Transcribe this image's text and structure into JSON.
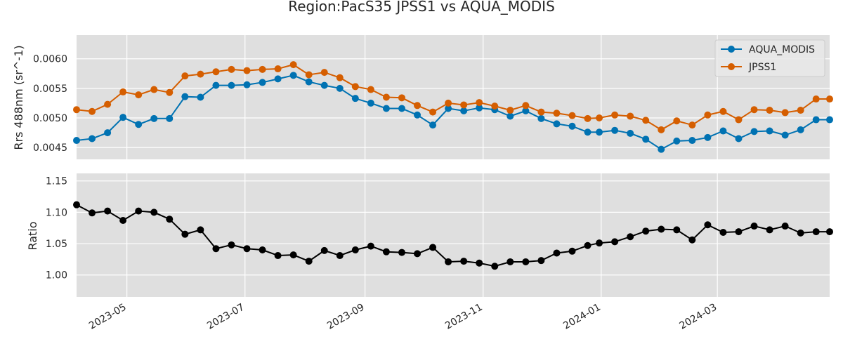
{
  "title": "Region:PacS35 JPSS1 vs AQUA_MODIS",
  "colors": {
    "aqua": "#0072B2",
    "jpss": "#D55E00",
    "ratio": "#000000",
    "panel_bg": "#DFDFDF",
    "grid": "#FFFFFF"
  },
  "chart_data": [
    {
      "type": "line",
      "xlabel": "",
      "ylabel": "Rrs 488nm (sr^-1)",
      "x_axis": {
        "type": "date",
        "range": [
          "2023-04-05",
          "2024-04-28"
        ],
        "ticks": [
          "2023-05-01",
          "2023-07-01",
          "2023-09-01",
          "2023-11-01",
          "2024-01-01",
          "2024-03-01"
        ],
        "tick_labels": [
          "2023-05",
          "2023-07",
          "2023-09",
          "2023-11",
          "2024-01",
          "2024-03"
        ]
      },
      "ylim": [
        0.0043,
        0.0064
      ],
      "yticks": [
        0.0045,
        0.005,
        0.0055,
        0.006
      ],
      "ytick_labels": [
        "0.0045",
        "0.0050",
        "0.0055",
        "0.0060"
      ],
      "grid": true,
      "legend": "top-right",
      "x": [
        "2023-04-05",
        "2023-04-13",
        "2023-04-21",
        "2023-04-29",
        "2023-05-07",
        "2023-05-15",
        "2023-05-23",
        "2023-05-31",
        "2023-06-08",
        "2023-06-16",
        "2023-06-24",
        "2023-07-02",
        "2023-07-10",
        "2023-07-18",
        "2023-07-26",
        "2023-08-03",
        "2023-08-11",
        "2023-08-19",
        "2023-08-27",
        "2023-09-04",
        "2023-09-12",
        "2023-09-20",
        "2023-09-28",
        "2023-10-06",
        "2023-10-14",
        "2023-10-22",
        "2023-10-30",
        "2023-11-07",
        "2023-11-15",
        "2023-11-23",
        "2023-12-01",
        "2023-12-09",
        "2023-12-17",
        "2023-12-25",
        "2023-12-31",
        "2024-01-08",
        "2024-01-16",
        "2024-01-24",
        "2024-02-01",
        "2024-02-09",
        "2024-02-17",
        "2024-02-25",
        "2024-03-04",
        "2024-03-12",
        "2024-03-20",
        "2024-03-28",
        "2024-04-05",
        "2024-04-13",
        "2024-04-21",
        "2024-04-28"
      ],
      "series": [
        {
          "name": "AQUA_MODIS",
          "color_key": "aqua",
          "values": [
            0.00462,
            0.00465,
            0.00475,
            0.00501,
            0.00489,
            0.00499,
            0.00499,
            0.00536,
            0.00535,
            0.00555,
            0.00555,
            0.00556,
            0.0056,
            0.00566,
            0.00572,
            0.00561,
            0.00555,
            0.0055,
            0.00533,
            0.00525,
            0.00516,
            0.00516,
            0.00505,
            0.00488,
            0.00516,
            0.00512,
            0.00517,
            0.00514,
            0.00503,
            0.00512,
            0.00499,
            0.0049,
            0.00486,
            0.00476,
            0.00476,
            0.00479,
            0.00474,
            0.00464,
            0.00447,
            0.00461,
            0.00462,
            0.00467,
            0.00478,
            0.00465,
            0.00477,
            0.00478,
            0.00471,
            0.0048,
            0.00497,
            0.00497
          ]
        },
        {
          "name": "JPSS1",
          "color_key": "jpss",
          "values": [
            0.00514,
            0.00511,
            0.00523,
            0.00544,
            0.00539,
            0.00548,
            0.00543,
            0.00571,
            0.00574,
            0.00578,
            0.00582,
            0.0058,
            0.00582,
            0.00583,
            0.0059,
            0.00573,
            0.00577,
            0.00568,
            0.00553,
            0.00548,
            0.00535,
            0.00534,
            0.00521,
            0.0051,
            0.00525,
            0.00522,
            0.00526,
            0.0052,
            0.00513,
            0.00521,
            0.0051,
            0.00508,
            0.00504,
            0.00499,
            0.005,
            0.00505,
            0.00503,
            0.00496,
            0.0048,
            0.00495,
            0.00488,
            0.00505,
            0.00511,
            0.00497,
            0.00514,
            0.00513,
            0.00509,
            0.00513,
            0.00532,
            0.00532
          ]
        }
      ]
    },
    {
      "type": "line",
      "xlabel": "",
      "ylabel": "Ratio",
      "ylim": [
        0.965,
        1.162
      ],
      "yticks": [
        1.0,
        1.05,
        1.1,
        1.15
      ],
      "ytick_labels": [
        "1.00",
        "1.05",
        "1.10",
        "1.15"
      ],
      "grid": true,
      "series": [
        {
          "name": "",
          "color_key": "ratio",
          "values": [
            1.112,
            1.099,
            1.102,
            1.087,
            1.102,
            1.1,
            1.089,
            1.065,
            1.072,
            1.042,
            1.048,
            1.042,
            1.04,
            1.031,
            1.032,
            1.022,
            1.039,
            1.031,
            1.04,
            1.046,
            1.037,
            1.036,
            1.034,
            1.044,
            1.021,
            1.022,
            1.019,
            1.014,
            1.021,
            1.021,
            1.023,
            1.035,
            1.038,
            1.047,
            1.051,
            1.053,
            1.061,
            1.07,
            1.073,
            1.072,
            1.056,
            1.08,
            1.068,
            1.069,
            1.078,
            1.072,
            1.078,
            1.067,
            1.069,
            1.069
          ]
        }
      ]
    }
  ]
}
